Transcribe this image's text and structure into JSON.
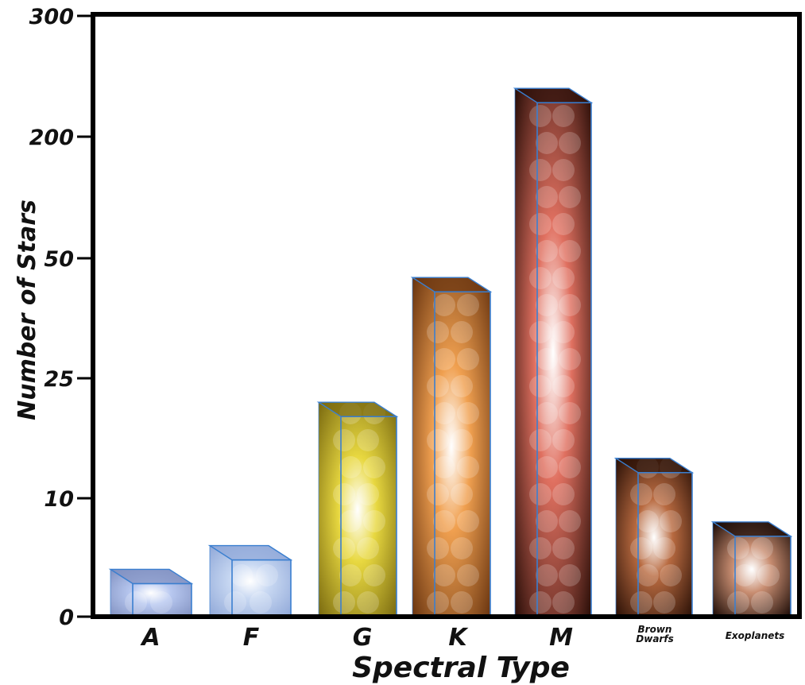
{
  "chart_data": {
    "type": "bar",
    "title": "",
    "xlabel": "Spectral Type",
    "ylabel": "Number of Stars",
    "categories": [
      "A",
      "F",
      "G",
      "K",
      "M",
      "Brown Dwarfs",
      "Exoplanets"
    ],
    "category_labels": [
      {
        "lines": [
          "A"
        ],
        "small": false
      },
      {
        "lines": [
          "F"
        ],
        "small": false
      },
      {
        "lines": [
          "G"
        ],
        "small": false
      },
      {
        "lines": [
          "K"
        ],
        "small": false
      },
      {
        "lines": [
          "M"
        ],
        "small": false
      },
      {
        "lines": [
          "Brown",
          "Dwarfs"
        ],
        "small": true
      },
      {
        "lines": [
          "Exoplanets"
        ],
        "small": true
      }
    ],
    "y_ticks": [
      {
        "value": 0,
        "label": "0"
      },
      {
        "value": 10,
        "label": "10"
      },
      {
        "value": 25,
        "label": "25"
      },
      {
        "value": 50,
        "label": "50"
      },
      {
        "value": 200,
        "label": "200"
      },
      {
        "value": 300,
        "label": "300"
      }
    ],
    "y_scale": "piecewise (non-linear, equally spaced ticks)",
    "values": [
      4,
      6,
      22,
      46,
      240,
      15,
      8
    ],
    "bar_colors": [
      "#b8c8f0",
      "#c8d8f2",
      "#e8d840",
      "#f0a050",
      "#e07060",
      "#b86a40",
      "#c98e72"
    ],
    "bar_dark": [
      "#8090c0",
      "#90a8d8",
      "#7a6a10",
      "#6a3510",
      "#2a0e08",
      "#2a1006",
      "#1a0a05"
    ],
    "edge_color": "#3a7fd0",
    "grid": false,
    "legend": "none"
  }
}
